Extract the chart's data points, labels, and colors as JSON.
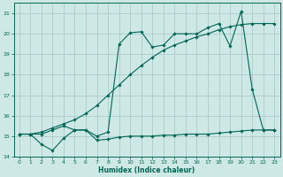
{
  "xlabel": "Humidex (Indice chaleur)",
  "bg_color": "#cde8e5",
  "grid_color": "#aaccca",
  "line_color": "#006655",
  "xlim": [
    -0.5,
    23.5
  ],
  "ylim": [
    14.0,
    21.5
  ],
  "yticks": [
    14,
    15,
    16,
    17,
    18,
    19,
    20,
    21
  ],
  "xticks": [
    0,
    1,
    2,
    3,
    4,
    5,
    6,
    7,
    8,
    9,
    10,
    11,
    12,
    13,
    14,
    15,
    16,
    17,
    18,
    19,
    20,
    21,
    22,
    23
  ],
  "series1_x": [
    0,
    1,
    2,
    3,
    4,
    5,
    6,
    7,
    8,
    9,
    10,
    11,
    12,
    13,
    14,
    15,
    16,
    17,
    18,
    19,
    20,
    21,
    22,
    23
  ],
  "series1_y": [
    15.1,
    15.1,
    14.6,
    14.3,
    14.9,
    15.3,
    15.3,
    14.8,
    14.85,
    14.95,
    15.0,
    15.0,
    15.0,
    15.05,
    15.05,
    15.1,
    15.1,
    15.1,
    15.15,
    15.2,
    15.25,
    15.3,
    15.3,
    15.3
  ],
  "series2_x": [
    0,
    1,
    2,
    3,
    4,
    5,
    6,
    7,
    8,
    9,
    10,
    11,
    12,
    13,
    14,
    15,
    16,
    17,
    18,
    19,
    20,
    21,
    22,
    23
  ],
  "series2_y": [
    15.1,
    15.1,
    15.2,
    15.4,
    15.6,
    15.8,
    16.1,
    16.5,
    17.0,
    17.5,
    18.0,
    18.45,
    18.85,
    19.2,
    19.45,
    19.65,
    19.85,
    20.0,
    20.2,
    20.35,
    20.45,
    20.5,
    20.5,
    20.5
  ],
  "series3_x": [
    0,
    1,
    2,
    3,
    4,
    5,
    6,
    7,
    8,
    9,
    10,
    11,
    12,
    13,
    14,
    15,
    16,
    17,
    18,
    19,
    20,
    21,
    22,
    23
  ],
  "series3_y": [
    15.1,
    15.1,
    15.1,
    15.3,
    15.5,
    15.3,
    15.3,
    15.0,
    15.2,
    19.5,
    20.05,
    20.1,
    19.35,
    19.45,
    20.0,
    20.0,
    20.0,
    20.3,
    20.5,
    19.4,
    21.1,
    17.3,
    15.3,
    15.3
  ]
}
